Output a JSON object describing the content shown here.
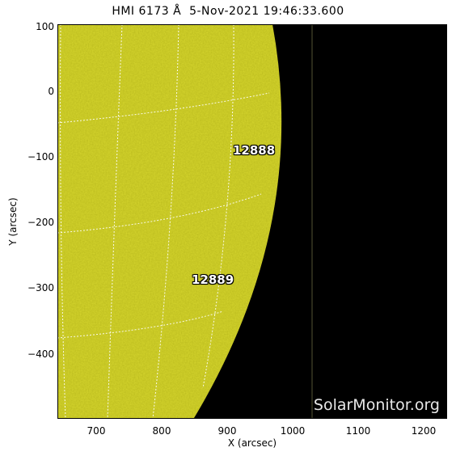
{
  "title": "HMI 6173 Å  5-Nov-2021 19:46:33.600",
  "x_axis": {
    "label": "X (arcsec)",
    "ticks": [
      "700",
      "800",
      "900",
      "1000",
      "1100",
      "1200"
    ]
  },
  "y_axis": {
    "label": "Y (arcsec)",
    "ticks": [
      "100",
      "0",
      "−100",
      "−200",
      "−300",
      "−400"
    ]
  },
  "active_regions": [
    {
      "number": "12888",
      "x_arcsec": 910,
      "y_arcsec": -92
    },
    {
      "number": "12889",
      "x_arcsec": 855,
      "y_arcsec": -285
    }
  ],
  "watermark": "SolarMonitor.org",
  "colors": {
    "disk": "#d6d62e",
    "sky": "#000000",
    "grid": "#ffffff"
  }
}
